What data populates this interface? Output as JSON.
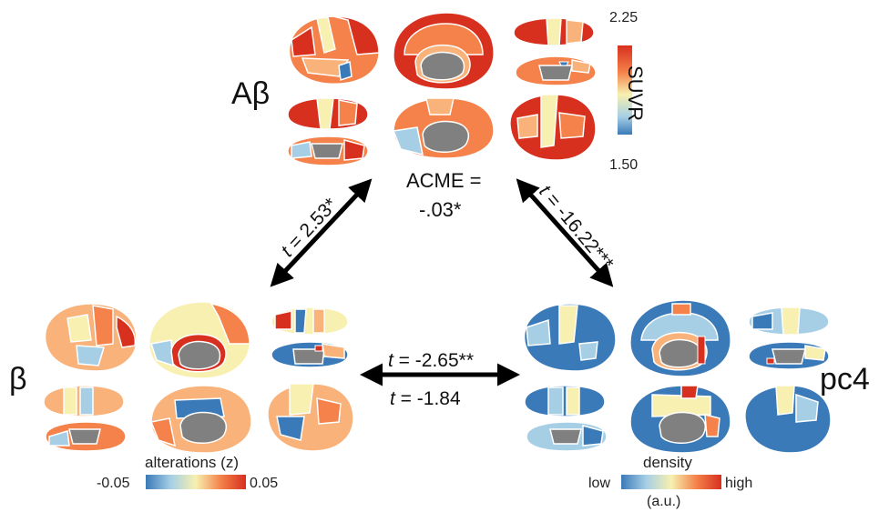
{
  "panels": {
    "abeta": {
      "label": "Aβ",
      "colorbar": {
        "max": "2.25",
        "min": "1.50",
        "title": "SUVR"
      }
    },
    "beta": {
      "label": "β",
      "colorbar": {
        "title": "alterations (z)",
        "min": "-0.05",
        "max": "0.05"
      }
    },
    "pc4": {
      "label": "pc4",
      "colorbar": {
        "title": "density",
        "low": "low",
        "high": "high",
        "unit": "(a.u.)"
      }
    }
  },
  "stats": {
    "abeta_beta": {
      "t": "t",
      "rest": " = 2.53*"
    },
    "abeta_pc4": {
      "t": "t",
      "rest": " = -16.22***"
    },
    "beta_pc4_top": {
      "t": "t",
      "rest": " = -2.65**"
    },
    "beta_pc4_bottom": {
      "t": "t",
      "rest": " = -1.84"
    },
    "acme_line1": "ACME =",
    "acme_line2": "-.03*"
  },
  "colors": {
    "red": "#d7301f",
    "orange": "#f4824a",
    "light_orange": "#f9b27a",
    "yellow": "#f7f0b0",
    "light_blue": "#a6cfe6",
    "blue": "#3b7ab8",
    "gray": "#808080"
  }
}
